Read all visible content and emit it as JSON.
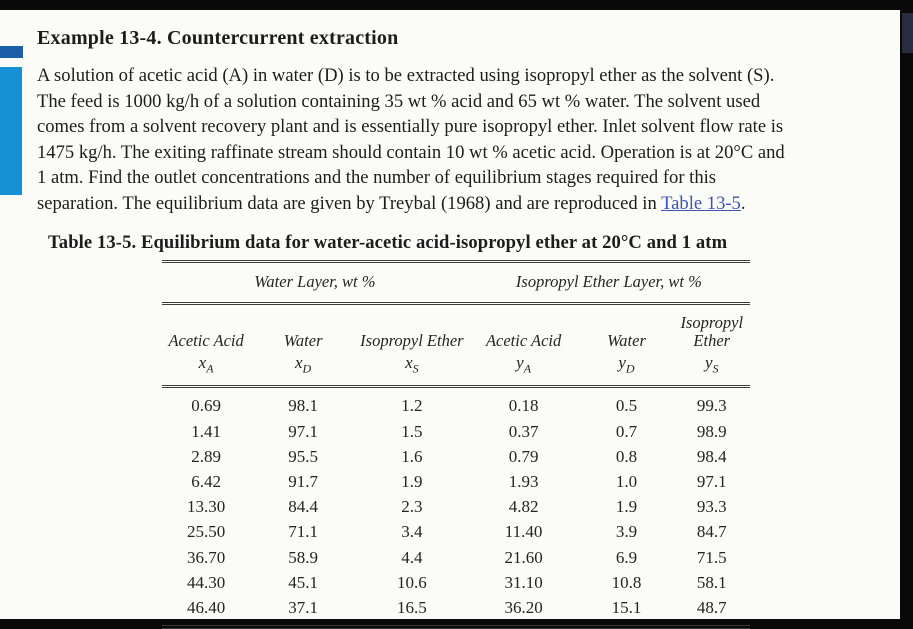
{
  "title": "Example 13-4. Countercurrent extraction",
  "paragraph": {
    "lines": [
      "A solution of acetic acid (A) in water (D) is to be extracted using isopropyl ether as the solvent (S).",
      "The feed is 1000 kg/h of a solution containing 35 wt % acid and 65 wt % water. The solvent used",
      "comes from a solvent recovery plant and is essentially pure isopropyl ether. Inlet solvent flow rate is",
      "1475 kg/h. The exiting raffinate stream should contain 10 wt % acetic acid. Operation is at 20°C and",
      "1 atm. Find the outlet concentrations and the number of equilibrium stages required for this"
    ],
    "last_line_prefix": "separation. The equilibrium data are given by Treybal (1968) and are reproduced in ",
    "link_text": "Table 13-5",
    "last_line_suffix": "."
  },
  "table": {
    "caption": "Table 13-5. Equilibrium data for water-acetic acid-isopropyl ether at 20°C and 1 atm",
    "group_headers": [
      "Water Layer, wt %",
      "Isopropyl Ether Layer, wt %"
    ],
    "columns": [
      {
        "name": "Acetic Acid",
        "var": "x",
        "sub": "A"
      },
      {
        "name": "Water",
        "var": "x",
        "sub": "D"
      },
      {
        "name": "Isopropyl Ether",
        "var": "x",
        "sub": "S"
      },
      {
        "name": "Acetic Acid",
        "var": "y",
        "sub": "A"
      },
      {
        "name": "Water",
        "var": "y",
        "sub": "D"
      },
      {
        "name": "Isopropyl Ether",
        "var": "y",
        "sub": "S"
      }
    ],
    "rows": [
      [
        "0.69",
        "98.1",
        "1.2",
        "0.18",
        "0.5",
        "99.3"
      ],
      [
        "1.41",
        "97.1",
        "1.5",
        "0.37",
        "0.7",
        "98.9"
      ],
      [
        "2.89",
        "95.5",
        "1.6",
        "0.79",
        "0.8",
        "98.4"
      ],
      [
        "6.42",
        "91.7",
        "1.9",
        "1.93",
        "1.0",
        "97.1"
      ],
      [
        "13.30",
        "84.4",
        "2.3",
        "4.82",
        "1.9",
        "93.3"
      ],
      [
        "25.50",
        "71.1",
        "3.4",
        "11.40",
        "3.9",
        "84.7"
      ],
      [
        "36.70",
        "58.9",
        "4.4",
        "21.60",
        "6.9",
        "71.5"
      ],
      [
        "44.30",
        "45.1",
        "10.6",
        "31.10",
        "10.8",
        "58.1"
      ],
      [
        "46.40",
        "37.1",
        "16.5",
        "36.20",
        "15.1",
        "48.7"
      ]
    ]
  },
  "colors": {
    "accent_navy": "#1a5fa8",
    "accent_blue": "#1590d3",
    "link_blue": "#4053b4",
    "paper": "#fbfbf8",
    "frame_black": "#090909"
  }
}
